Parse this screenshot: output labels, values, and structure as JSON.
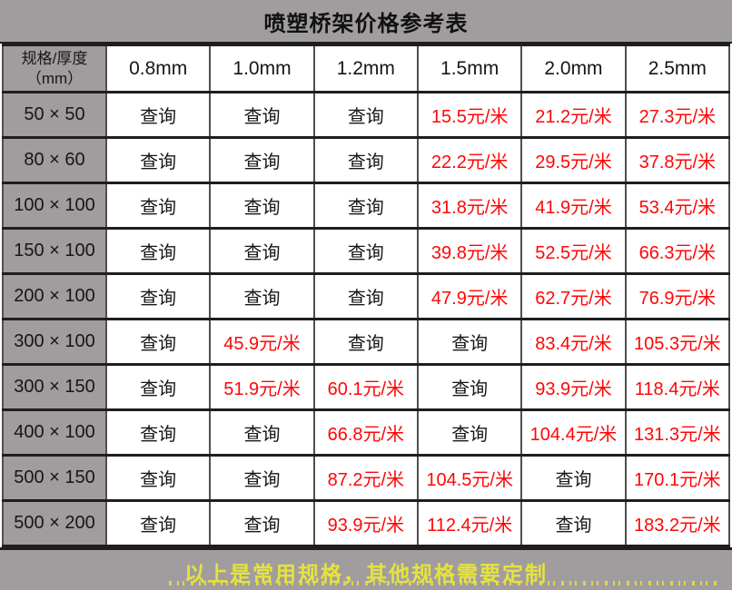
{
  "page": {
    "title": "喷塑桥架价格参考表",
    "footer_note": "以上是常用规格，其他规格需要定制"
  },
  "colors": {
    "band_gray": "#a19d9f",
    "price_red": "#fe0606",
    "note_yellow": "#e6e33c"
  },
  "chart_data": {
    "type": "table",
    "title": "喷塑桥架价格参考表",
    "corner_header": {
      "line1": "规格/厚度",
      "line2": "（mm）"
    },
    "columns": [
      "0.8mm",
      "1.0mm",
      "1.2mm",
      "1.5mm",
      "2.0mm",
      "2.5mm"
    ],
    "query_label": "查询",
    "unit_suffix": "元/米",
    "rows": [
      {
        "spec": "50 × 50",
        "values": [
          "查询",
          "查询",
          "查询",
          "15.5元/米",
          "21.2元/米",
          "27.3元/米"
        ]
      },
      {
        "spec": "80 × 60",
        "values": [
          "查询",
          "查询",
          "查询",
          "22.2元/米",
          "29.5元/米",
          "37.8元/米"
        ]
      },
      {
        "spec": "100 × 100",
        "values": [
          "查询",
          "查询",
          "查询",
          "31.8元/米",
          "41.9元/米",
          "53.4元/米"
        ]
      },
      {
        "spec": "150 × 100",
        "values": [
          "查询",
          "查询",
          "查询",
          "39.8元/米",
          "52.5元/米",
          "66.3元/米"
        ]
      },
      {
        "spec": "200 × 100",
        "values": [
          "查询",
          "查询",
          "查询",
          "47.9元/米",
          "62.7元/米",
          "76.9元/米"
        ]
      },
      {
        "spec": "300 × 100",
        "values": [
          "查询",
          "45.9元/米",
          "查询",
          "查询",
          "83.4元/米",
          "105.3元/米"
        ]
      },
      {
        "spec": "300 × 150",
        "values": [
          "查询",
          "51.9元/米",
          "60.1元/米",
          "查询",
          "93.9元/米",
          "118.4元/米"
        ]
      },
      {
        "spec": "400 × 100",
        "values": [
          "查询",
          "查询",
          "66.8元/米",
          "查询",
          "104.4元/米",
          "131.3元/米"
        ]
      },
      {
        "spec": "500 × 150",
        "values": [
          "查询",
          "查询",
          "87.2元/米",
          "104.5元/米",
          "查询",
          "170.1元/米"
        ]
      },
      {
        "spec": "500 × 200",
        "values": [
          "查询",
          "查询",
          "93.9元/米",
          "112.4元/米",
          "查询",
          "183.2元/米"
        ]
      }
    ],
    "footer": "以上是常用规格，其他规格需要定制",
    "layout": {
      "grid": "on",
      "header_position": "top",
      "spec_column_position": "left"
    }
  }
}
